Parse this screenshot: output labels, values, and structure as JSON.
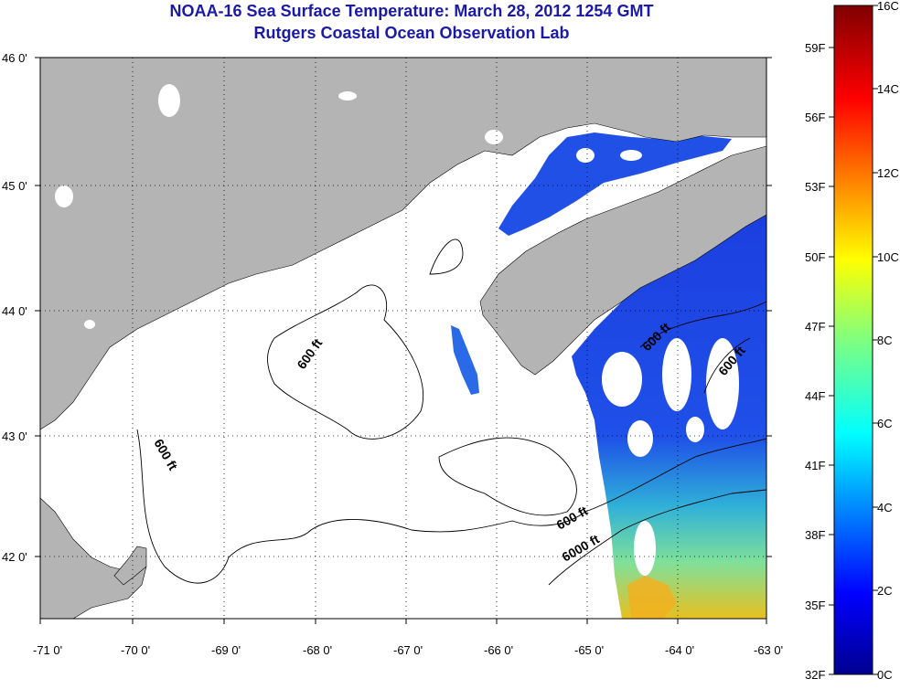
{
  "title_line1": "NOAA-16 Sea Surface Temperature:  March 28, 2012 1254 GMT",
  "title_line2": "Rutgers Coastal Ocean Observation Lab",
  "map": {
    "lon_range": [
      -71,
      -63
    ],
    "lat_range": [
      41.5,
      46
    ],
    "lon_ticks": [
      "-71 0'",
      "-70 0'",
      "-69 0'",
      "-68 0'",
      "-67 0'",
      "-66 0'",
      "-65 0'",
      "-64 0'",
      "-63 0'"
    ],
    "lat_ticks": [
      "46 0'",
      "45 0'",
      "44 0'",
      "43 0'",
      "42 0'"
    ],
    "contour_labels": [
      "600 ft",
      "600 ft",
      "600 ft",
      "600 ft",
      "600 ft",
      "6000 ft"
    ],
    "land_color": "#b4b4b4",
    "cloud_color": "#ffffff"
  },
  "colorbar": {
    "celsius_labels": [
      "16C",
      "14C",
      "12C",
      "10C",
      "8C",
      "6C",
      "4C",
      "2C",
      "0C"
    ],
    "fahrenheit_labels": [
      "59F",
      "56F",
      "53F",
      "50F",
      "47F",
      "44F",
      "41F",
      "38F",
      "35F",
      "32F"
    ],
    "celsius_range": [
      0,
      16
    ],
    "fahrenheit_range": [
      32,
      61
    ]
  }
}
